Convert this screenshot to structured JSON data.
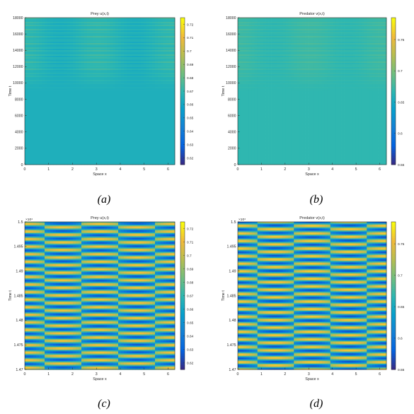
{
  "chart_data": [
    {
      "type": "heatmap",
      "title": "Prey u(x,t)",
      "xlabel": "Space x",
      "ylabel": "Time t",
      "xlim": [
        0,
        6.283
      ],
      "ylim": [
        0,
        18000
      ],
      "xticks": [
        "0",
        "1",
        "2",
        "3",
        "4",
        "5",
        "6"
      ],
      "yticks": [
        "0",
        "2000",
        "4000",
        "6000",
        "8000",
        "10000",
        "12000",
        "14000",
        "16000",
        "18000"
      ],
      "ytick_values": [
        0,
        2000,
        4000,
        6000,
        8000,
        10000,
        12000,
        14000,
        16000,
        18000
      ],
      "exponent_label": "",
      "colorbar_ticks": [
        "0.62",
        "0.63",
        "0.64",
        "0.65",
        "0.66",
        "0.67",
        "0.68",
        "0.69",
        "0.7",
        "0.71",
        "0.72"
      ],
      "colorbar_range": [
        0.615,
        0.725
      ],
      "colormap": "parula",
      "pattern": {
        "kind": "onset",
        "base": 0.665,
        "amplitude": 0.008,
        "onset_t": 9000,
        "full_t": 12000,
        "bands_per_unit": 0.0045,
        "temporal_amp": 0.003
      },
      "caption": "(a)"
    },
    {
      "type": "heatmap",
      "title": "Predator v(x,t)",
      "xlabel": "Space x",
      "ylabel": "Time t",
      "xlim": [
        0,
        6.283
      ],
      "ylim": [
        0,
        18000
      ],
      "xticks": [
        "0",
        "1",
        "2",
        "3",
        "4",
        "5",
        "6"
      ],
      "yticks": [
        "0",
        "2000",
        "4000",
        "6000",
        "8000",
        "10000",
        "12000",
        "14000",
        "16000",
        "18000"
      ],
      "ytick_values": [
        0,
        2000,
        4000,
        6000,
        8000,
        10000,
        12000,
        14000,
        16000,
        18000
      ],
      "exponent_label": "",
      "colorbar_ticks": [
        "0.55",
        "0.6",
        "0.65",
        "0.7",
        "0.75"
      ],
      "colorbar_range": [
        0.55,
        0.785
      ],
      "colormap": "parula",
      "pattern": {
        "kind": "onset",
        "base": 0.668,
        "amplitude": 0.01,
        "onset_t": 9000,
        "full_t": 12000,
        "bands_per_unit": 0.0045,
        "temporal_amp": 0.004
      },
      "caption": "(b)"
    },
    {
      "type": "heatmap",
      "title": "Prey u(x,t)",
      "xlabel": "Space x",
      "ylabel": "Time t",
      "xlim": [
        0,
        6.283
      ],
      "ylim": [
        14700,
        15000
      ],
      "xticks": [
        "0",
        "1",
        "2",
        "3",
        "4",
        "5",
        "6"
      ],
      "yticks": [
        "1.47",
        "1.475",
        "1.48",
        "1.485",
        "1.49",
        "1.495",
        "1.5"
      ],
      "ytick_values": [
        14700,
        14750,
        14800,
        14850,
        14900,
        14950,
        15000
      ],
      "exponent_label": "×10⁴",
      "colorbar_ticks": [
        "0.62",
        "0.63",
        "0.64",
        "0.65",
        "0.66",
        "0.67",
        "0.68",
        "0.69",
        "0.7",
        "0.71",
        "0.72"
      ],
      "colorbar_range": [
        0.615,
        0.725
      ],
      "colormap": "parula",
      "pattern": {
        "kind": "zoom",
        "base": 0.67,
        "amplitude": 0.05,
        "spatial_modes": 2,
        "stripes": 19.5,
        "phase": 0.0
      },
      "caption": "(c)"
    },
    {
      "type": "heatmap",
      "title": "Predator v(x,t)",
      "xlabel": "Space x",
      "ylabel": "Time t",
      "xlim": [
        0,
        6.283
      ],
      "ylim": [
        14700,
        15000
      ],
      "xticks": [
        "0",
        "1",
        "2",
        "3",
        "4",
        "5",
        "6"
      ],
      "yticks": [
        "1.47",
        "1.475",
        "1.48",
        "1.485",
        "1.49",
        "1.495",
        "1.5"
      ],
      "ytick_values": [
        14700,
        14750,
        14800,
        14850,
        14900,
        14950,
        15000
      ],
      "exponent_label": "×10⁴",
      "colorbar_ticks": [
        "0.55",
        "0.6",
        "0.65",
        "0.7",
        "0.75"
      ],
      "colorbar_range": [
        0.55,
        0.785
      ],
      "colormap": "parula",
      "pattern": {
        "kind": "zoom",
        "base": 0.668,
        "amplitude": 0.11,
        "spatial_modes": 2,
        "stripes": 19.5,
        "phase": 1.6
      },
      "caption": "(d)"
    }
  ]
}
